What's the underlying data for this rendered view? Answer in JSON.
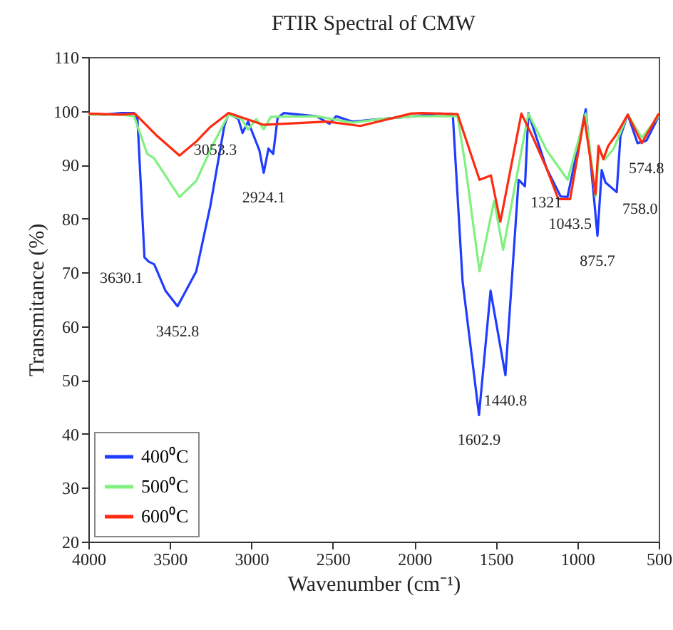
{
  "chart_data": {
    "type": "line",
    "title": "FTIR Spectral of CMW",
    "xlabel": "Wavenumber (cm⁻¹)",
    "ylabel": "Transmitance (%)",
    "xlim": [
      4000,
      500
    ],
    "xticks": [
      {
        "value": 4000,
        "label": "4000"
      },
      {
        "value": 3500,
        "label": "3500"
      },
      {
        "value": 3000,
        "label": "3000"
      },
      {
        "value": 2500,
        "label": "2500"
      },
      {
        "value": 2000,
        "label": "2000"
      },
      {
        "value": 1500,
        "label": "1500"
      },
      {
        "value": 1000,
        "label": "1000"
      },
      500
    ],
    "ylim": [
      20,
      110
    ],
    "yticks": [
      20,
      30,
      40,
      50,
      60,
      70,
      80,
      90,
      100,
      110
    ],
    "grid": false,
    "legend": "bottom left",
    "marker": "none",
    "line_style": "solid",
    "series": [
      {
        "name": "400⁰C",
        "color": "#1f3cff",
        "x": [
          4000,
          3900,
          3800,
          3720,
          3699,
          3656,
          3630,
          3596,
          3527,
          3453,
          3338,
          3252,
          3166,
          3140,
          3080,
          3054,
          3020,
          2951,
          2924,
          2895,
          2866,
          2839,
          2800,
          2600,
          2521,
          2480,
          2378,
          2200,
          2000,
          1850,
          1764,
          1704,
          1603,
          1532,
          1441,
          1360,
          1321,
          1300,
          1188,
          1102,
          1060,
          948,
          876,
          850,
          827,
          758,
          735,
          690,
          630,
          575,
          500
        ],
        "values": [
          99.5,
          99.3,
          99.6,
          99.6,
          98.5,
          72.8,
          72,
          71.5,
          66.6,
          63.7,
          70.2,
          82.3,
          97.2,
          99.5,
          98.5,
          95.9,
          98,
          92.7,
          88.5,
          93,
          92,
          98.7,
          99.6,
          99,
          97.6,
          99,
          98,
          98.5,
          99,
          99.5,
          99.4,
          68.4,
          43.5,
          66.6,
          50.9,
          87.2,
          86,
          99.6,
          89.3,
          84.1,
          84,
          100.3,
          76.8,
          89,
          86.7,
          84.9,
          95.3,
          99.3,
          94,
          94.5,
          99
        ]
      },
      {
        "name": "500⁰C",
        "color": "#80f080",
        "x": [
          4000,
          3800,
          3720,
          3639,
          3597,
          3441,
          3338,
          3235,
          3140,
          3060,
          3020,
          2970,
          2924,
          2880,
          2600,
          2378,
          2200,
          2000,
          1735,
          1690,
          1600,
          1510,
          1455,
          1300,
          1188,
          1059,
          948,
          888,
          865,
          830,
          776,
          735,
          690,
          604,
          500
        ],
        "values": [
          99.3,
          99.3,
          99,
          92,
          91.2,
          84,
          87,
          93.8,
          99.3,
          98.5,
          96.5,
          98.5,
          96.6,
          98.9,
          99,
          97.8,
          98.5,
          99,
          99,
          90.6,
          70.2,
          83.3,
          74.2,
          99.5,
          92.7,
          87.2,
          99.5,
          84.1,
          92.8,
          91,
          93,
          96,
          99.3,
          95,
          99
        ]
      },
      {
        "name": "600⁰C",
        "color": "#ff2a10",
        "x": [
          4000,
          3800,
          3715,
          3577,
          3441,
          3338,
          3252,
          3140,
          2924,
          2536,
          2332,
          2020,
          1954,
          1735,
          1600,
          1530,
          1472,
          1343,
          1271,
          1188,
          1116,
          1044,
          957,
          888,
          870,
          840,
          810,
          760,
          690,
          604,
          500
        ],
        "values": [
          99.5,
          99.3,
          99.5,
          95.3,
          91.7,
          94.3,
          97,
          99.6,
          97.4,
          98,
          97.2,
          99.5,
          99.6,
          99.4,
          87.2,
          88,
          79.4,
          99.5,
          95,
          89.3,
          83.6,
          83.6,
          98.8,
          84.5,
          93.5,
          91,
          93.5,
          95.6,
          99.3,
          94,
          99.5
        ]
      }
    ],
    "annotations": [
      {
        "text": "3630.1",
        "x": 3630,
        "y": 72
      },
      {
        "text": "3452.8",
        "x": 3453,
        "y": 63.7
      },
      {
        "text": "3053.3",
        "x": 3054,
        "y": 95.9
      },
      {
        "text": "2924.1",
        "x": 2924,
        "y": 88.5
      },
      {
        "text": "1602.9",
        "x": 1603,
        "y": 43.5
      },
      {
        "text": "1440.8",
        "x": 1441,
        "y": 50.9
      },
      {
        "text": "1321",
        "x": 1321,
        "y": 86
      },
      {
        "text": "1043.5",
        "x": 1044,
        "y": 83.6
      },
      {
        "text": "875.7",
        "x": 876,
        "y": 76.8
      },
      {
        "text": "758.0",
        "x": 758,
        "y": 84.9
      },
      {
        "text": "574.8",
        "x": 575,
        "y": 94
      }
    ]
  }
}
